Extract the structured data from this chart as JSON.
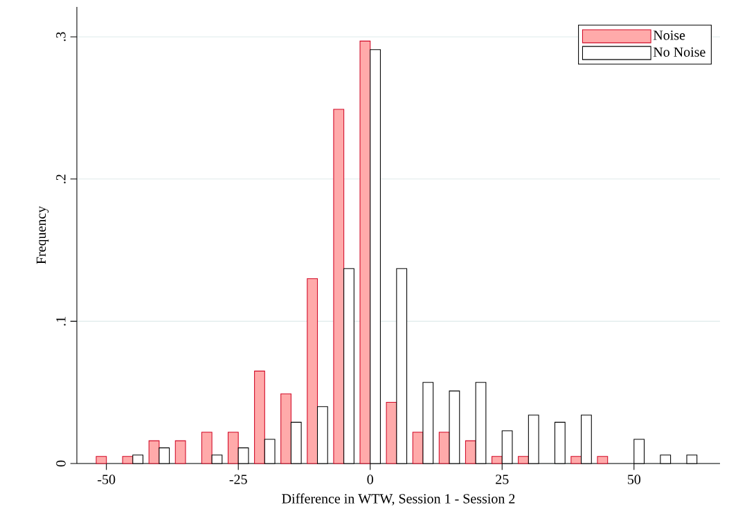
{
  "chart_data": {
    "type": "bar",
    "xlabel": "Difference in WTW, Session 1 - Session 2",
    "ylabel": "Frequency",
    "xlim": [
      -55.6,
      66.3
    ],
    "ylim": [
      0,
      0.321
    ],
    "xticks": [
      -50,
      -25,
      0,
      25,
      50
    ],
    "yticks": [
      0,
      {
        "value": 0.1,
        "label": ".1"
      },
      {
        "value": 0.2,
        "label": ".2"
      },
      {
        "value": 0.3,
        "label": ".3"
      }
    ],
    "grid": "y",
    "legend": "top right",
    "series": [
      {
        "name": "Noise",
        "color": "#ffaaaa",
        "x": [
          -50,
          -45,
          -40,
          -35,
          -30,
          -25,
          -20,
          -15,
          -10,
          -5,
          0,
          5,
          10,
          15,
          20,
          25,
          30,
          40,
          45
        ],
        "values": [
          0.005,
          0.005,
          0.016,
          0.016,
          0.022,
          0.022,
          0.065,
          0.049,
          0.13,
          0.249,
          0.297,
          0.043,
          0.022,
          0.022,
          0.016,
          0.005,
          0.005,
          0.005,
          0.005
        ]
      },
      {
        "name": "No Noise",
        "color": "#ffffff",
        "x": [
          -45,
          -40,
          -30,
          -25,
          -20,
          -15,
          -10,
          -5,
          0,
          5,
          10,
          15,
          20,
          25,
          30,
          35,
          40,
          50,
          55,
          60
        ],
        "values": [
          0.006,
          0.011,
          0.006,
          0.011,
          0.017,
          0.029,
          0.04,
          0.137,
          0.291,
          0.137,
          0.057,
          0.051,
          0.057,
          0.023,
          0.034,
          0.029,
          0.034,
          0.017,
          0.006,
          0.006
        ]
      }
    ]
  }
}
